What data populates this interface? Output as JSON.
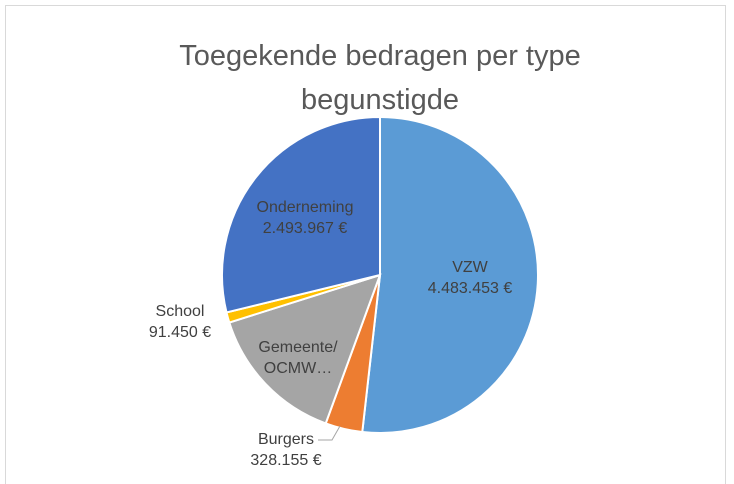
{
  "chart_data": {
    "type": "pie",
    "title": "Toegekende bedragen per type begunstigde",
    "categories": [
      "VZW",
      "Burgers",
      "Gemeente/OCMW…",
      "School",
      "Onderneming"
    ],
    "values": [
      4483453,
      328155,
      1260000,
      91450,
      2493967
    ],
    "value_labels": [
      "4.483.453 €",
      "328.155 €",
      null,
      "91.450 €",
      "2.493.967 €"
    ],
    "colors": [
      "#5b9bd5",
      "#ed7d31",
      "#a5a5a5",
      "#ffc000",
      "#4472c4"
    ]
  }
}
